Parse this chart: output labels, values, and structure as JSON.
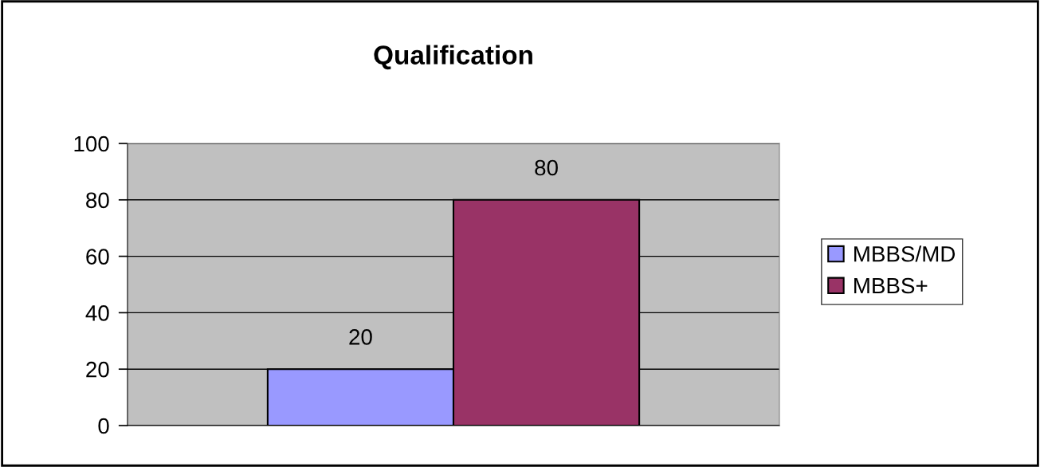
{
  "chart_data": {
    "type": "bar",
    "title": "Qualification",
    "categories": [
      null
    ],
    "series": [
      {
        "name": "MBBS/MD",
        "color": "#9999ff",
        "values": [
          20
        ]
      },
      {
        "name": "MBBS+",
        "color": "#993366",
        "values": [
          80
        ]
      }
    ],
    "ylim": [
      0,
      100
    ],
    "yticks": [
      0,
      20,
      40,
      60,
      80,
      100
    ],
    "grid": "y",
    "legend": "right",
    "data_labels": true
  }
}
